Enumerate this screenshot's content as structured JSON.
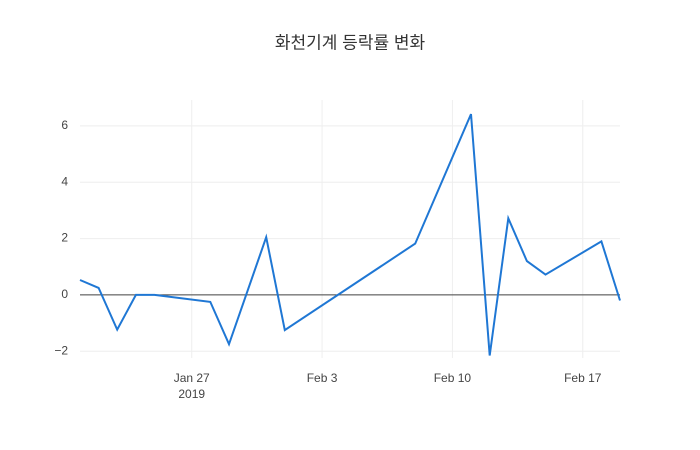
{
  "chart_data": {
    "type": "line",
    "title": "화천기계 등락률 변화",
    "x": [
      "2019-01-21",
      "2019-01-22",
      "2019-01-23",
      "2019-01-24",
      "2019-01-25",
      "2019-01-28",
      "2019-01-29",
      "2019-01-31",
      "2019-02-01",
      "2019-02-08",
      "2019-02-11",
      "2019-02-12",
      "2019-02-13",
      "2019-02-14",
      "2019-02-15",
      "2019-02-18",
      "2019-02-19"
    ],
    "values": [
      0.53,
      0.25,
      -1.23,
      0,
      0,
      -0.25,
      -1.75,
      2.05,
      -1.25,
      1.82,
      6.42,
      -2.15,
      2.72,
      1.2,
      0.72,
      1.9,
      -0.2
    ],
    "color": "#1f77d4",
    "xlim": [
      "2019-01-21",
      "2019-02-19"
    ],
    "xticks": [
      {
        "value": "2019-01-27",
        "label": "Jan 27"
      },
      {
        "value": "2019-02-03",
        "label": "Feb 3"
      },
      {
        "value": "2019-02-10",
        "label": "Feb 10"
      },
      {
        "value": "2019-02-17",
        "label": "Feb 17"
      }
    ],
    "xtick_year": "2019",
    "ylim": [
      -2.24,
      6.92
    ],
    "yticks": [
      {
        "value": -2,
        "label": "−2"
      },
      0,
      2,
      4,
      6
    ],
    "grid": true,
    "zeroline": true
  }
}
